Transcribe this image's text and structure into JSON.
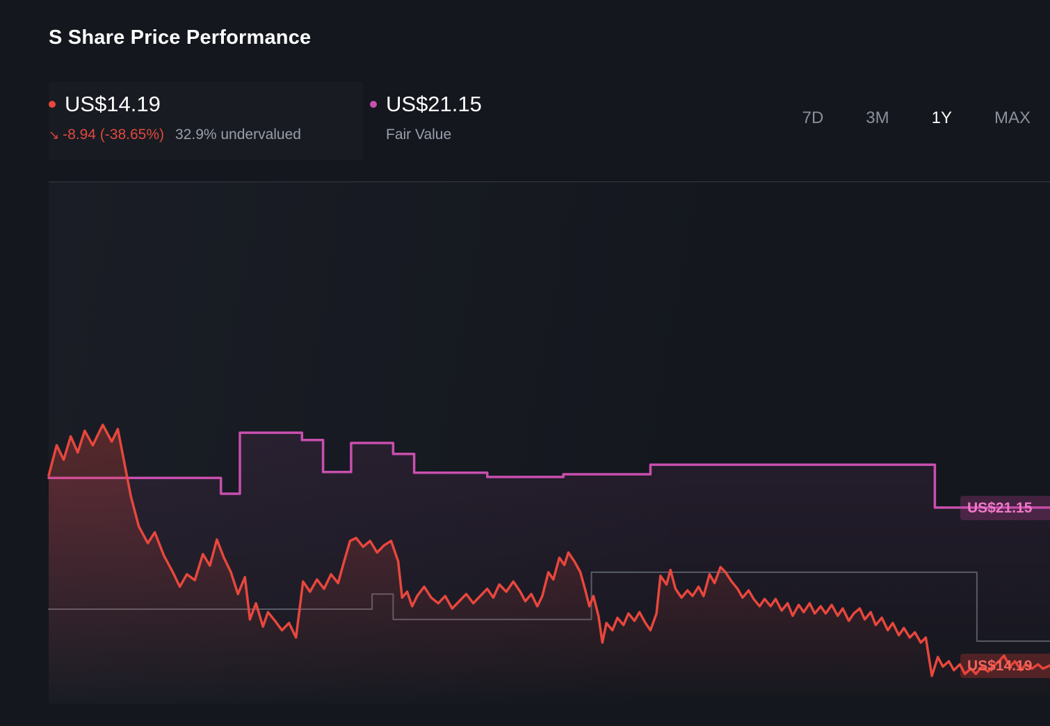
{
  "header": {
    "title": "S Share Price Performance"
  },
  "legend": {
    "share_price": {
      "value": "US$14.19",
      "change_arrow": "↘",
      "change": "-8.94 (-38.65%)",
      "undervalued": "32.9% undervalued",
      "color": "#e8473d",
      "change_color": "#e0493d"
    },
    "fair_value": {
      "value": "US$21.15",
      "label": "Fair Value",
      "color": "#c94fae"
    }
  },
  "range_selector": {
    "options": [
      {
        "label": "7D",
        "active": false
      },
      {
        "label": "3M",
        "active": false
      },
      {
        "label": "1Y",
        "active": true
      },
      {
        "label": "MAX",
        "active": false
      }
    ]
  },
  "chart_labels": {
    "fair_value_chip": "US$21.15",
    "share_price_chip": "US$14.19"
  },
  "chart_data": {
    "type": "line",
    "title": "S Share Price Performance (1Y)",
    "xlabel": "time (1Y range, no tick labels shown)",
    "ylabel": "price (US$, axis not labeled)",
    "ylim": [
      12.5,
      35.5
    ],
    "grid": false,
    "legend_position": "top-left",
    "series": [
      {
        "id": "fair-value",
        "name": "Fair Value",
        "color": "#c94fae",
        "style": "step",
        "width": 3.5,
        "area": true,
        "area_opacity": 0.1,
        "current": 21.15,
        "points": [
          [
            0.0,
            22.46
          ],
          [
            0.172,
            22.46
          ],
          [
            0.172,
            21.76
          ],
          [
            0.191,
            21.76
          ],
          [
            0.191,
            24.45
          ],
          [
            0.253,
            24.45
          ],
          [
            0.253,
            24.13
          ],
          [
            0.274,
            24.13
          ],
          [
            0.274,
            22.72
          ],
          [
            0.302,
            22.72
          ],
          [
            0.302,
            24.0
          ],
          [
            0.344,
            24.0
          ],
          [
            0.344,
            23.52
          ],
          [
            0.365,
            23.52
          ],
          [
            0.365,
            22.69
          ],
          [
            0.438,
            22.69
          ],
          [
            0.438,
            22.5
          ],
          [
            0.514,
            22.5
          ],
          [
            0.514,
            22.62
          ],
          [
            0.601,
            22.62
          ],
          [
            0.601,
            23.04
          ],
          [
            0.885,
            23.04
          ],
          [
            0.885,
            21.15
          ],
          [
            1.0,
            21.15
          ]
        ]
      },
      {
        "id": "gray-step",
        "name": "(unlabeled gray step line)",
        "color": "#8a91a0",
        "style": "step",
        "width": 2,
        "opacity": 0.55,
        "area": false,
        "current": null,
        "points": [
          [
            0.0,
            16.67
          ],
          [
            0.323,
            16.67
          ],
          [
            0.323,
            17.34
          ],
          [
            0.344,
            17.34
          ],
          [
            0.344,
            16.22
          ],
          [
            0.542,
            16.22
          ],
          [
            0.542,
            18.3
          ],
          [
            0.927,
            18.3
          ],
          [
            0.927,
            15.26
          ],
          [
            1.0,
            15.26
          ]
        ]
      },
      {
        "id": "share-price",
        "name": "Share Price",
        "color": "#e8473d",
        "style": "line",
        "width": 3.5,
        "area": true,
        "area_opacity": 0.3,
        "current": 14.19,
        "points": [
          [
            0,
            22.56
          ],
          [
            0.008,
            23.9
          ],
          [
            0.015,
            23.26
          ],
          [
            0.022,
            24.29
          ],
          [
            0.029,
            23.58
          ],
          [
            0.036,
            24.54
          ],
          [
            0.044,
            23.9
          ],
          [
            0.054,
            24.8
          ],
          [
            0.063,
            24.06
          ],
          [
            0.069,
            24.61
          ],
          [
            0.075,
            23.26
          ],
          [
            0.082,
            21.66
          ],
          [
            0.09,
            20.32
          ],
          [
            0.099,
            19.58
          ],
          [
            0.106,
            20.06
          ],
          [
            0.115,
            19.04
          ],
          [
            0.124,
            18.3
          ],
          [
            0.131,
            17.66
          ],
          [
            0.138,
            18.21
          ],
          [
            0.146,
            17.95
          ],
          [
            0.154,
            19.1
          ],
          [
            0.161,
            18.59
          ],
          [
            0.168,
            19.74
          ],
          [
            0.175,
            18.94
          ],
          [
            0.182,
            18.3
          ],
          [
            0.189,
            17.34
          ],
          [
            0.196,
            18.08
          ],
          [
            0.201,
            16.22
          ],
          [
            0.207,
            16.93
          ],
          [
            0.214,
            15.9
          ],
          [
            0.219,
            16.54
          ],
          [
            0.226,
            16.16
          ],
          [
            0.233,
            15.74
          ],
          [
            0.24,
            16.06
          ],
          [
            0.247,
            15.42
          ],
          [
            0.254,
            17.89
          ],
          [
            0.261,
            17.44
          ],
          [
            0.268,
            17.98
          ],
          [
            0.275,
            17.57
          ],
          [
            0.282,
            18.21
          ],
          [
            0.289,
            17.82
          ],
          [
            0.294,
            18.62
          ],
          [
            0.301,
            19.68
          ],
          [
            0.307,
            19.81
          ],
          [
            0.314,
            19.42
          ],
          [
            0.321,
            19.68
          ],
          [
            0.328,
            19.17
          ],
          [
            0.335,
            19.49
          ],
          [
            0.342,
            19.68
          ],
          [
            0.349,
            18.78
          ],
          [
            0.353,
            17.18
          ],
          [
            0.358,
            17.44
          ],
          [
            0.363,
            16.8
          ],
          [
            0.368,
            17.25
          ],
          [
            0.375,
            17.66
          ],
          [
            0.382,
            17.18
          ],
          [
            0.389,
            16.93
          ],
          [
            0.396,
            17.25
          ],
          [
            0.403,
            16.7
          ],
          [
            0.41,
            17.02
          ],
          [
            0.417,
            17.34
          ],
          [
            0.424,
            16.93
          ],
          [
            0.431,
            17.25
          ],
          [
            0.438,
            17.57
          ],
          [
            0.444,
            17.18
          ],
          [
            0.45,
            17.76
          ],
          [
            0.457,
            17.44
          ],
          [
            0.464,
            17.89
          ],
          [
            0.471,
            17.44
          ],
          [
            0.476,
            17.02
          ],
          [
            0.482,
            17.34
          ],
          [
            0.488,
            16.8
          ],
          [
            0.493,
            17.25
          ],
          [
            0.499,
            18.3
          ],
          [
            0.504,
            17.98
          ],
          [
            0.51,
            18.94
          ],
          [
            0.515,
            18.62
          ],
          [
            0.519,
            19.17
          ],
          [
            0.525,
            18.78
          ],
          [
            0.531,
            18.3
          ],
          [
            0.536,
            17.5
          ],
          [
            0.54,
            16.8
          ],
          [
            0.544,
            17.25
          ],
          [
            0.549,
            16.38
          ],
          [
            0.553,
            15.2
          ],
          [
            0.557,
            16.06
          ],
          [
            0.563,
            15.74
          ],
          [
            0.568,
            16.29
          ],
          [
            0.574,
            15.97
          ],
          [
            0.579,
            16.48
          ],
          [
            0.585,
            16.16
          ],
          [
            0.59,
            16.54
          ],
          [
            0.596,
            16.06
          ],
          [
            0.601,
            15.74
          ],
          [
            0.607,
            16.48
          ],
          [
            0.611,
            18.14
          ],
          [
            0.617,
            17.76
          ],
          [
            0.621,
            18.4
          ],
          [
            0.626,
            17.57
          ],
          [
            0.632,
            17.18
          ],
          [
            0.638,
            17.5
          ],
          [
            0.643,
            17.25
          ],
          [
            0.649,
            17.66
          ],
          [
            0.654,
            17.25
          ],
          [
            0.66,
            18.21
          ],
          [
            0.665,
            17.82
          ],
          [
            0.671,
            18.53
          ],
          [
            0.676,
            18.3
          ],
          [
            0.682,
            17.89
          ],
          [
            0.688,
            17.57
          ],
          [
            0.693,
            17.18
          ],
          [
            0.699,
            17.5
          ],
          [
            0.704,
            17.12
          ],
          [
            0.71,
            16.8
          ],
          [
            0.715,
            17.12
          ],
          [
            0.721,
            16.8
          ],
          [
            0.726,
            17.12
          ],
          [
            0.732,
            16.61
          ],
          [
            0.738,
            16.93
          ],
          [
            0.743,
            16.38
          ],
          [
            0.749,
            16.86
          ],
          [
            0.754,
            16.54
          ],
          [
            0.76,
            16.93
          ],
          [
            0.765,
            16.48
          ],
          [
            0.771,
            16.8
          ],
          [
            0.776,
            16.48
          ],
          [
            0.782,
            16.86
          ],
          [
            0.788,
            16.38
          ],
          [
            0.793,
            16.7
          ],
          [
            0.799,
            16.16
          ],
          [
            0.804,
            16.48
          ],
          [
            0.81,
            16.7
          ],
          [
            0.815,
            16.22
          ],
          [
            0.821,
            16.54
          ],
          [
            0.826,
            15.97
          ],
          [
            0.832,
            16.29
          ],
          [
            0.838,
            15.74
          ],
          [
            0.843,
            16.06
          ],
          [
            0.849,
            15.52
          ],
          [
            0.854,
            15.84
          ],
          [
            0.86,
            15.42
          ],
          [
            0.865,
            15.65
          ],
          [
            0.871,
            15.2
          ],
          [
            0.876,
            15.42
          ],
          [
            0.882,
            13.73
          ],
          [
            0.888,
            14.56
          ],
          [
            0.893,
            14.14
          ],
          [
            0.899,
            14.37
          ],
          [
            0.904,
            13.98
          ],
          [
            0.91,
            14.24
          ],
          [
            0.915,
            13.82
          ],
          [
            0.921,
            14.05
          ],
          [
            0.926,
            13.82
          ],
          [
            0.932,
            14.14
          ],
          [
            0.938,
            13.92
          ],
          [
            0.943,
            14.14
          ],
          [
            0.949,
            14.37
          ],
          [
            0.954,
            14.62
          ],
          [
            0.96,
            14.14
          ],
          [
            0.965,
            14.37
          ],
          [
            0.971,
            13.98
          ],
          [
            0.976,
            14.24
          ],
          [
            0.982,
            14.05
          ],
          [
            0.988,
            14.24
          ],
          [
            0.993,
            14.05
          ],
          [
            1,
            14.19
          ]
        ]
      }
    ]
  }
}
